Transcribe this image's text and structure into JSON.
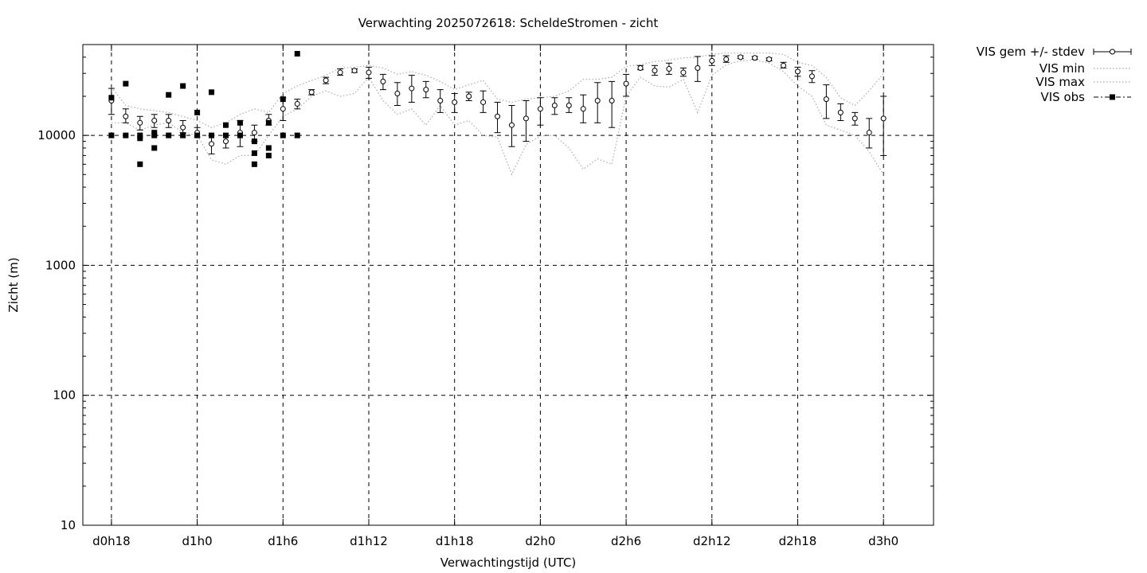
{
  "chart_data": {
    "type": "scatter",
    "title": "Verwachting 2025072618: ScheldeStromen - zicht",
    "xlabel": "Verwachtingstijd (UTC)",
    "ylabel": "Zicht (m)",
    "x_unit": "hours",
    "xlim": [
      16,
      75.5
    ],
    "ylim": [
      10,
      50000
    ],
    "y_scale": "log",
    "grid": true,
    "legend_position": "top-right-outside",
    "x_ticks": [
      {
        "x": 18,
        "label": "d0h18"
      },
      {
        "x": 24,
        "label": "d1h0"
      },
      {
        "x": 30,
        "label": "d1h6"
      },
      {
        "x": 36,
        "label": "d1h12"
      },
      {
        "x": 42,
        "label": "d1h18"
      },
      {
        "x": 48,
        "label": "d2h0"
      },
      {
        "x": 54,
        "label": "d2h6"
      },
      {
        "x": 60,
        "label": "d2h12"
      },
      {
        "x": 66,
        "label": "d2h18"
      },
      {
        "x": 72,
        "label": "d3h0"
      }
    ],
    "y_ticks": [
      {
        "y": 10,
        "label": "10"
      },
      {
        "y": 100,
        "label": "100"
      },
      {
        "y": 1000,
        "label": "1000"
      },
      {
        "y": 10000,
        "label": "10000"
      }
    ],
    "series": [
      {
        "name": "VIS gem +/- stdev",
        "style": "errorbars-open-circle",
        "color": "#000000",
        "x": [
          18,
          19,
          20,
          21,
          22,
          23,
          24,
          25,
          26,
          27,
          28,
          29,
          30,
          31,
          32,
          33,
          34,
          35,
          36,
          37,
          38,
          39,
          40,
          41,
          42,
          43,
          44,
          45,
          46,
          47,
          48,
          49,
          50,
          51,
          52,
          53,
          54,
          55,
          56,
          57,
          58,
          59,
          60,
          61,
          62,
          63,
          64,
          65,
          66,
          67,
          68,
          69,
          70,
          71,
          72
        ],
        "mean": [
          18500,
          14000,
          12500,
          13000,
          13000,
          11500,
          10500,
          8600,
          9000,
          10500,
          10500,
          13000,
          16000,
          17500,
          21500,
          26500,
          30500,
          31500,
          30500,
          26000,
          21000,
          23000,
          22500,
          18500,
          18000,
          20000,
          18000,
          14000,
          12000,
          13500,
          16000,
          17000,
          17000,
          16000,
          18500,
          18500,
          25000,
          33000,
          31500,
          32500,
          30500,
          33000,
          37500,
          38500,
          40000,
          39500,
          38500,
          34500,
          31000,
          28500,
          19000,
          15000,
          13500,
          10500,
          13500
        ],
        "low": [
          14500,
          12500,
          11000,
          11500,
          11500,
          10500,
          9700,
          7200,
          8000,
          8200,
          9000,
          12000,
          13000,
          16000,
          20500,
          25000,
          29000,
          30500,
          27500,
          22500,
          17000,
          18000,
          19500,
          15000,
          15000,
          18500,
          15000,
          10500,
          8200,
          9000,
          12000,
          14500,
          15000,
          12500,
          12500,
          11500,
          20000,
          32000,
          29000,
          29500,
          28500,
          26000,
          34500,
          36500,
          39000,
          38500,
          37500,
          33000,
          28500,
          25500,
          13500,
          13000,
          12000,
          8000,
          7000
        ],
        "high": [
          23000,
          16000,
          14000,
          14500,
          14500,
          13000,
          11500,
          10000,
          10000,
          13000,
          12000,
          14500,
          19500,
          19000,
          22500,
          28000,
          32500,
          32500,
          33500,
          29500,
          25500,
          29000,
          26000,
          22500,
          21000,
          21500,
          22000,
          18000,
          17000,
          18500,
          19500,
          19500,
          19500,
          20500,
          25500,
          26000,
          29500,
          34500,
          34500,
          36000,
          33000,
          40500,
          41000,
          41000,
          41000,
          40500,
          39500,
          36500,
          33500,
          31500,
          24500,
          17500,
          15000,
          13500,
          20000
        ]
      },
      {
        "name": "VIS min",
        "style": "dotted-line",
        "color": "#aaaaaa",
        "x": [
          18,
          19,
          20,
          21,
          22,
          23,
          24,
          25,
          26,
          27,
          28,
          29,
          30,
          31,
          32,
          33,
          34,
          35,
          36,
          37,
          38,
          39,
          40,
          41,
          42,
          43,
          44,
          45,
          46,
          47,
          48,
          49,
          50,
          51,
          52,
          53,
          54,
          55,
          56,
          57,
          58,
          59,
          60,
          61,
          62,
          63,
          64,
          65,
          66,
          67,
          68,
          69,
          70,
          71,
          72
        ],
        "values": [
          12500,
          12500,
          11000,
          12000,
          12500,
          10500,
          10000,
          6500,
          6000,
          7000,
          7000,
          10000,
          14000,
          16000,
          20000,
          22000,
          20000,
          21000,
          28000,
          18500,
          14500,
          16000,
          12000,
          17000,
          12000,
          13000,
          10000,
          9700,
          5000,
          8500,
          9900,
          10000,
          8000,
          5500,
          6600,
          6000,
          20000,
          28000,
          24000,
          23500,
          27000,
          15000,
          29000,
          35000,
          37500,
          38000,
          36000,
          31000,
          24000,
          20000,
          12000,
          11000,
          10000,
          7500,
          5000
        ]
      },
      {
        "name": "VIS max",
        "style": "dotted-line",
        "color": "#aaaaaa",
        "x": [
          18,
          19,
          20,
          21,
          22,
          23,
          24,
          25,
          26,
          27,
          28,
          29,
          30,
          31,
          32,
          33,
          34,
          35,
          36,
          37,
          38,
          39,
          40,
          41,
          42,
          43,
          44,
          45,
          46,
          47,
          48,
          49,
          50,
          51,
          52,
          53,
          54,
          55,
          56,
          57,
          58,
          59,
          60,
          61,
          62,
          63,
          64,
          65,
          66,
          67,
          68,
          69,
          70,
          71,
          72
        ],
        "values": [
          23500,
          17000,
          16000,
          15500,
          15000,
          14000,
          13000,
          11500,
          12500,
          14500,
          16000,
          15000,
          21000,
          24000,
          26500,
          29000,
          33000,
          33500,
          34500,
          33000,
          29500,
          31000,
          29000,
          26000,
          22500,
          24500,
          26500,
          19000,
          18000,
          19000,
          19500,
          20000,
          22000,
          27000,
          27000,
          28000,
          34000,
          35000,
          37000,
          38000,
          39500,
          40000,
          42000,
          43000,
          43000,
          43000,
          43000,
          42000,
          36500,
          34500,
          28000,
          19500,
          17000,
          22000,
          30000
        ]
      },
      {
        "name": "VIS obs",
        "style": "filled-square",
        "color": "#000000",
        "points": [
          [
            18,
            10000
          ],
          [
            18,
            19500
          ],
          [
            19,
            10000
          ],
          [
            19,
            25000
          ],
          [
            20,
            9500
          ],
          [
            20,
            10000
          ],
          [
            20,
            6000
          ],
          [
            21,
            8000
          ],
          [
            21,
            10000
          ],
          [
            21,
            10500
          ],
          [
            22,
            10000
          ],
          [
            22,
            20500
          ],
          [
            23,
            10000
          ],
          [
            23,
            24000
          ],
          [
            24,
            10000
          ],
          [
            24,
            15000
          ],
          [
            25,
            10000
          ],
          [
            25,
            21500
          ],
          [
            26,
            10000
          ],
          [
            26,
            12000
          ],
          [
            27,
            10000
          ],
          [
            27,
            12500
          ],
          [
            28,
            6000
          ],
          [
            28,
            7300
          ],
          [
            28,
            9000
          ],
          [
            29,
            7000
          ],
          [
            29,
            8000
          ],
          [
            29,
            12500
          ],
          [
            30,
            10000
          ],
          [
            30,
            19000
          ],
          [
            31,
            10000
          ],
          [
            31,
            42500
          ]
        ]
      }
    ]
  }
}
